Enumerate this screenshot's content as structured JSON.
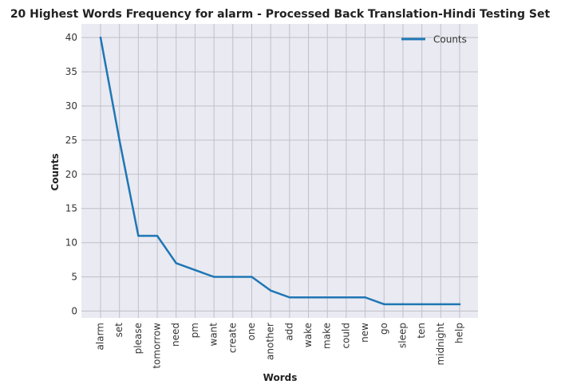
{
  "chart_data": {
    "type": "line",
    "title": "20 Highest Words Frequency for alarm - Processed Back Translation-Hindi Testing Set",
    "xlabel": "Words",
    "ylabel": "Counts",
    "categories": [
      "alarm",
      "set",
      "please",
      "tomorrow",
      "need",
      "pm",
      "want",
      "create",
      "one",
      "another",
      "add",
      "wake",
      "make",
      "could",
      "new",
      "go",
      "sleep",
      "ten",
      "midnight",
      "help"
    ],
    "series": [
      {
        "name": "Counts",
        "values": [
          40,
          25,
          11,
          11,
          7,
          6,
          5,
          5,
          5,
          3,
          2,
          2,
          2,
          2,
          2,
          1,
          1,
          1,
          1,
          1
        ]
      }
    ],
    "yticks": [
      0,
      5,
      10,
      15,
      20,
      25,
      30,
      35,
      40
    ],
    "ylim": [
      -1,
      42
    ],
    "grid": true,
    "legend_position": "top-right",
    "colors": {
      "line": "#1f77b4",
      "plot_background": "#eaeaf2",
      "grid": "#c0c0c8"
    }
  }
}
